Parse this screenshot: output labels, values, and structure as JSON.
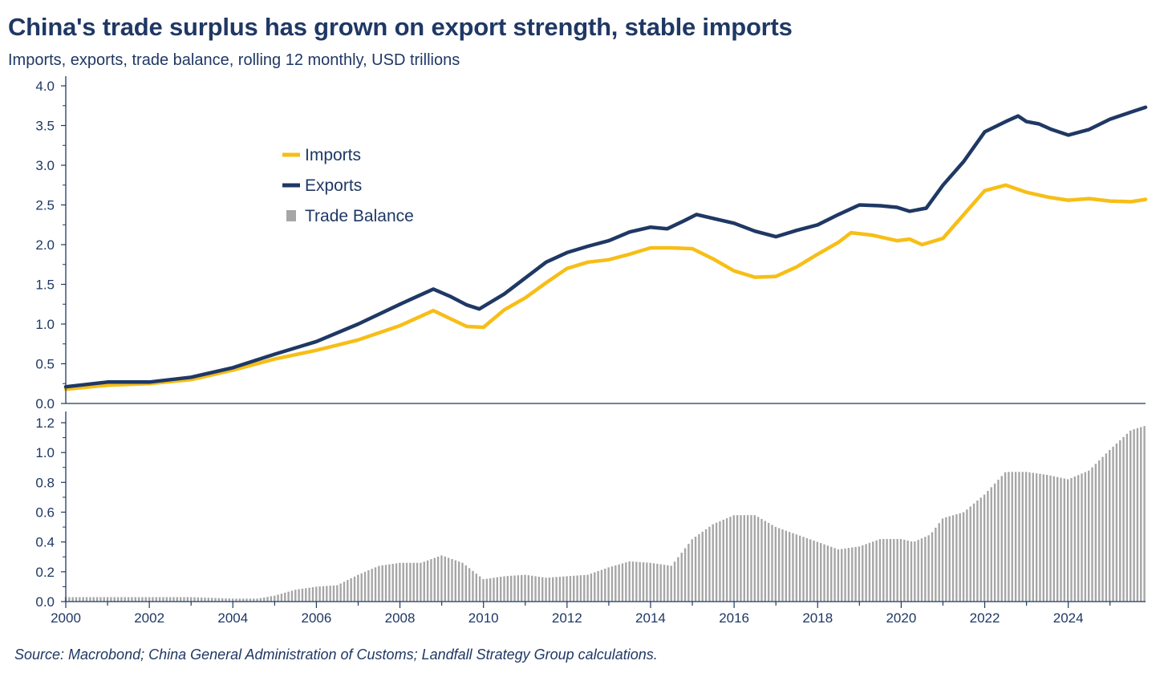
{
  "chart": {
    "title": "China's trade surplus has grown on export strength, stable imports",
    "subtitle": "Imports, exports, trade balance, rolling 12 monthly, USD trillions",
    "source": "Source: Macrobond; China General Administration of Customs; Landfall Strategy Group calculations."
  },
  "colors": {
    "imports": "#f7be16",
    "exports": "#1f3864",
    "balance": "#a6a6a6",
    "axis": "#1f3864"
  },
  "chart_data": [
    {
      "type": "line",
      "title": "China's trade surplus has grown on export strength, stable imports",
      "ylabel": "USD trillions",
      "xlim": [
        2000,
        2025.85
      ],
      "ylim": [
        0,
        4.0
      ],
      "y_ticks": [
        "0.0",
        "0.5",
        "1.0",
        "1.5",
        "2.0",
        "2.5",
        "3.0",
        "3.5",
        "4.0"
      ],
      "y_tick_values": [
        0,
        0.5,
        1.0,
        1.5,
        2.0,
        2.5,
        3.0,
        3.5,
        4.0
      ],
      "legend": [
        "Imports",
        "Exports",
        "Trade Balance"
      ],
      "legend_position": "upper-left",
      "series": [
        {
          "name": "Imports",
          "points": [
            [
              2000,
              0.18
            ],
            [
              2001,
              0.23
            ],
            [
              2002,
              0.25
            ],
            [
              2003,
              0.3
            ],
            [
              2004,
              0.42
            ],
            [
              2005,
              0.56
            ],
            [
              2006,
              0.67
            ],
            [
              2007,
              0.8
            ],
            [
              2008,
              0.98
            ],
            [
              2008.8,
              1.17
            ],
            [
              2009.2,
              1.07
            ],
            [
              2009.6,
              0.97
            ],
            [
              2010,
              0.96
            ],
            [
              2010.5,
              1.18
            ],
            [
              2011,
              1.33
            ],
            [
              2011.5,
              1.52
            ],
            [
              2012,
              1.7
            ],
            [
              2012.5,
              1.78
            ],
            [
              2013,
              1.81
            ],
            [
              2013.5,
              1.88
            ],
            [
              2014,
              1.96
            ],
            [
              2014.5,
              1.96
            ],
            [
              2015,
              1.95
            ],
            [
              2015.5,
              1.82
            ],
            [
              2016,
              1.67
            ],
            [
              2016.5,
              1.59
            ],
            [
              2017,
              1.6
            ],
            [
              2017.5,
              1.72
            ],
            [
              2018,
              1.88
            ],
            [
              2018.5,
              2.03
            ],
            [
              2018.8,
              2.15
            ],
            [
              2019.3,
              2.12
            ],
            [
              2019.9,
              2.05
            ],
            [
              2020.2,
              2.07
            ],
            [
              2020.5,
              2.0
            ],
            [
              2021,
              2.08
            ],
            [
              2021.5,
              2.38
            ],
            [
              2022,
              2.68
            ],
            [
              2022.5,
              2.75
            ],
            [
              2023,
              2.66
            ],
            [
              2023.5,
              2.6
            ],
            [
              2024,
              2.56
            ],
            [
              2024.5,
              2.58
            ],
            [
              2025,
              2.55
            ],
            [
              2025.5,
              2.54
            ],
            [
              2025.85,
              2.57
            ]
          ]
        },
        {
          "name": "Exports",
          "points": [
            [
              2000,
              0.21
            ],
            [
              2001,
              0.27
            ],
            [
              2002,
              0.27
            ],
            [
              2003,
              0.33
            ],
            [
              2004,
              0.45
            ],
            [
              2005,
              0.62
            ],
            [
              2006,
              0.78
            ],
            [
              2007,
              1.0
            ],
            [
              2008,
              1.25
            ],
            [
              2008.8,
              1.44
            ],
            [
              2009.2,
              1.35
            ],
            [
              2009.6,
              1.24
            ],
            [
              2009.9,
              1.19
            ],
            [
              2010.5,
              1.38
            ],
            [
              2011,
              1.58
            ],
            [
              2011.5,
              1.78
            ],
            [
              2012,
              1.9
            ],
            [
              2012.5,
              1.98
            ],
            [
              2013,
              2.05
            ],
            [
              2013.5,
              2.16
            ],
            [
              2014,
              2.22
            ],
            [
              2014.4,
              2.2
            ],
            [
              2014.8,
              2.3
            ],
            [
              2015.1,
              2.38
            ],
            [
              2015.5,
              2.33
            ],
            [
              2016,
              2.27
            ],
            [
              2016.5,
              2.17
            ],
            [
              2017,
              2.1
            ],
            [
              2017.5,
              2.18
            ],
            [
              2018,
              2.25
            ],
            [
              2018.5,
              2.38
            ],
            [
              2019,
              2.5
            ],
            [
              2019.5,
              2.49
            ],
            [
              2019.9,
              2.47
            ],
            [
              2020.2,
              2.42
            ],
            [
              2020.6,
              2.46
            ],
            [
              2021,
              2.75
            ],
            [
              2021.5,
              3.05
            ],
            [
              2022,
              3.42
            ],
            [
              2022.5,
              3.55
            ],
            [
              2022.8,
              3.62
            ],
            [
              2023,
              3.55
            ],
            [
              2023.3,
              3.52
            ],
            [
              2023.6,
              3.45
            ],
            [
              2024,
              3.38
            ],
            [
              2024.5,
              3.45
            ],
            [
              2025,
              3.58
            ],
            [
              2025.5,
              3.67
            ],
            [
              2025.85,
              3.73
            ]
          ]
        },
        {
          "name": "Trade Balance",
          "axis": "lower",
          "ylim": [
            0,
            1.2
          ],
          "y_ticks": [
            "0.0",
            "0.2",
            "0.4",
            "0.6",
            "0.8",
            "1.0",
            "1.2"
          ],
          "y_tick_values": [
            0,
            0.2,
            0.4,
            0.6,
            0.8,
            1.0,
            1.2
          ],
          "bar_width_years": 0.0833,
          "points": [
            [
              2000,
              0.03
            ],
            [
              2001,
              0.03
            ],
            [
              2002,
              0.03
            ],
            [
              2003,
              0.03
            ],
            [
              2004,
              0.02
            ],
            [
              2004.6,
              0.02
            ],
            [
              2005,
              0.04
            ],
            [
              2005.5,
              0.08
            ],
            [
              2006,
              0.1
            ],
            [
              2006.5,
              0.11
            ],
            [
              2007,
              0.18
            ],
            [
              2007.5,
              0.24
            ],
            [
              2008,
              0.26
            ],
            [
              2008.5,
              0.26
            ],
            [
              2009,
              0.31
            ],
            [
              2009.5,
              0.26
            ],
            [
              2010,
              0.15
            ],
            [
              2010.5,
              0.17
            ],
            [
              2011,
              0.18
            ],
            [
              2011.5,
              0.16
            ],
            [
              2012,
              0.17
            ],
            [
              2012.5,
              0.18
            ],
            [
              2013,
              0.23
            ],
            [
              2013.5,
              0.27
            ],
            [
              2014,
              0.26
            ],
            [
              2014.5,
              0.24
            ],
            [
              2015,
              0.42
            ],
            [
              2015.5,
              0.52
            ],
            [
              2016,
              0.58
            ],
            [
              2016.5,
              0.58
            ],
            [
              2017,
              0.5
            ],
            [
              2017.5,
              0.45
            ],
            [
              2018,
              0.4
            ],
            [
              2018.5,
              0.35
            ],
            [
              2019,
              0.37
            ],
            [
              2019.5,
              0.42
            ],
            [
              2020,
              0.42
            ],
            [
              2020.3,
              0.4
            ],
            [
              2020.7,
              0.45
            ],
            [
              2021,
              0.56
            ],
            [
              2021.5,
              0.6
            ],
            [
              2022,
              0.72
            ],
            [
              2022.5,
              0.87
            ],
            [
              2023,
              0.87
            ],
            [
              2023.5,
              0.85
            ],
            [
              2024,
              0.82
            ],
            [
              2024.5,
              0.88
            ],
            [
              2025,
              1.02
            ],
            [
              2025.5,
              1.15
            ],
            [
              2025.85,
              1.18
            ]
          ]
        }
      ],
      "x_ticks": [
        "2000",
        "2002",
        "2004",
        "2006",
        "2008",
        "2010",
        "2012",
        "2014",
        "2016",
        "2018",
        "2020",
        "2022",
        "2024"
      ],
      "x_tick_values": [
        2000,
        2002,
        2004,
        2006,
        2008,
        2010,
        2012,
        2014,
        2016,
        2018,
        2020,
        2022,
        2024
      ]
    }
  ]
}
